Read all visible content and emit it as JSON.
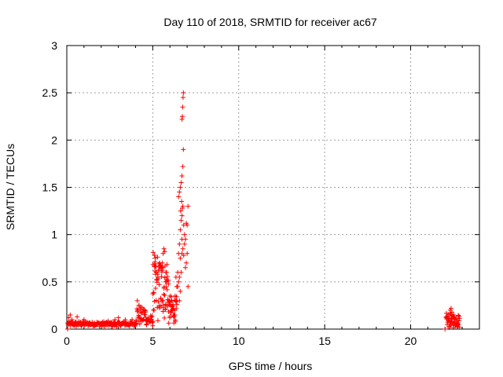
{
  "chart_data": {
    "type": "scatter",
    "title": "Day 110 of 2018, SRMTID for receiver ac67",
    "xlabel": "GPS time / hours",
    "ylabel": "SRMTID / TECUs",
    "xlim": [
      0,
      24
    ],
    "ylim": [
      0,
      3
    ],
    "x_ticks": [
      0,
      5,
      10,
      15,
      20
    ],
    "x_tick_labels": [
      "0",
      "5",
      "10",
      "15",
      "20"
    ],
    "y_ticks": [
      0,
      0.5,
      1,
      1.5,
      2,
      2.5,
      3
    ],
    "y_tick_labels": [
      "0",
      "0.5",
      "1",
      "1.5",
      "2",
      "2.5",
      "3"
    ],
    "grid": true,
    "marker": "+",
    "marker_color": "#ff0000",
    "segments": [
      {
        "from": 0.05,
        "to": 4.0,
        "step": 0.05,
        "base": 0.055,
        "amp": 0.03
      },
      {
        "from": 4.0,
        "to": 4.6,
        "step": 0.04,
        "base": 0.15,
        "amp": 0.12
      },
      {
        "from": 4.6,
        "to": 5.0,
        "step": 0.04,
        "base": 0.09,
        "amp": 0.06
      },
      {
        "from": 5.0,
        "to": 5.9,
        "step": 0.025,
        "base": 0.45,
        "amp": 0.38
      },
      {
        "from": 5.9,
        "to": 6.4,
        "step": 0.03,
        "base": 0.2,
        "amp": 0.15
      },
      {
        "from": 22.05,
        "to": 22.85,
        "step": 0.03,
        "base": 0.09,
        "amp": 0.08
      }
    ],
    "points": [
      [
        0.05,
        0.0
      ],
      [
        0.1,
        0.12
      ],
      [
        0.2,
        0.15
      ],
      [
        0.3,
        0.1
      ],
      [
        0.6,
        0.13
      ],
      [
        1.0,
        0.1
      ],
      [
        2.8,
        0.1
      ],
      [
        3.0,
        0.12
      ],
      [
        3.4,
        0.1
      ],
      [
        3.8,
        0.1
      ],
      [
        4.1,
        0.3
      ],
      [
        4.2,
        0.25
      ],
      [
        4.15,
        0.2
      ],
      [
        4.3,
        0.18
      ],
      [
        5.1,
        0.78
      ],
      [
        5.15,
        0.75
      ],
      [
        5.2,
        0.6
      ],
      [
        5.3,
        0.55
      ],
      [
        5.4,
        0.7
      ],
      [
        5.5,
        0.65
      ],
      [
        5.6,
        0.8
      ],
      [
        5.65,
        0.85
      ],
      [
        5.7,
        0.82
      ],
      [
        5.8,
        0.6
      ],
      [
        5.75,
        0.5
      ],
      [
        6.0,
        0.35
      ],
      [
        6.1,
        0.3
      ],
      [
        6.2,
        0.22
      ],
      [
        6.25,
        0.15
      ],
      [
        6.3,
        0.35
      ],
      [
        6.35,
        0.55
      ],
      [
        6.4,
        0.45
      ],
      [
        6.45,
        0.6
      ],
      [
        6.5,
        0.8
      ],
      [
        6.55,
        0.9
      ],
      [
        6.6,
        1.05
      ],
      [
        6.65,
        1.15
      ],
      [
        6.7,
        1.2
      ],
      [
        6.75,
        1.3
      ],
      [
        6.8,
        1.1
      ],
      [
        6.85,
        1.0
      ],
      [
        6.9,
        0.95
      ],
      [
        6.95,
        1.12
      ],
      [
        7.0,
        1.1
      ],
      [
        7.05,
        1.3
      ],
      [
        6.55,
        0.55
      ],
      [
        6.6,
        0.75
      ],
      [
        6.65,
        0.6
      ],
      [
        6.7,
        0.8
      ],
      [
        6.75,
        0.85
      ],
      [
        6.8,
        0.78
      ],
      [
        6.9,
        0.65
      ],
      [
        6.95,
        0.7
      ],
      [
        7.0,
        0.8
      ],
      [
        7.05,
        0.45
      ],
      [
        6.85,
        0.9
      ],
      [
        6.7,
        0.95
      ],
      [
        6.5,
        1.4
      ],
      [
        6.55,
        1.45
      ],
      [
        6.6,
        1.5
      ],
      [
        6.65,
        1.55
      ],
      [
        6.7,
        1.62
      ],
      [
        6.75,
        1.72
      ],
      [
        6.68,
        1.35
      ],
      [
        6.72,
        1.28
      ],
      [
        6.62,
        1.25
      ],
      [
        6.78,
        1.9
      ],
      [
        6.7,
        2.22
      ],
      [
        6.72,
        2.25
      ],
      [
        6.74,
        2.35
      ],
      [
        6.76,
        2.45
      ],
      [
        6.78,
        2.5
      ],
      [
        6.5,
        0.5
      ],
      [
        6.45,
        0.45
      ],
      [
        6.4,
        0.3
      ],
      [
        6.55,
        0.3
      ],
      [
        6.6,
        0.4
      ],
      [
        22.0,
        0.0
      ],
      [
        22.3,
        0.2
      ],
      [
        22.35,
        0.22
      ],
      [
        22.4,
        0.18
      ],
      [
        22.5,
        0.15
      ]
    ]
  }
}
